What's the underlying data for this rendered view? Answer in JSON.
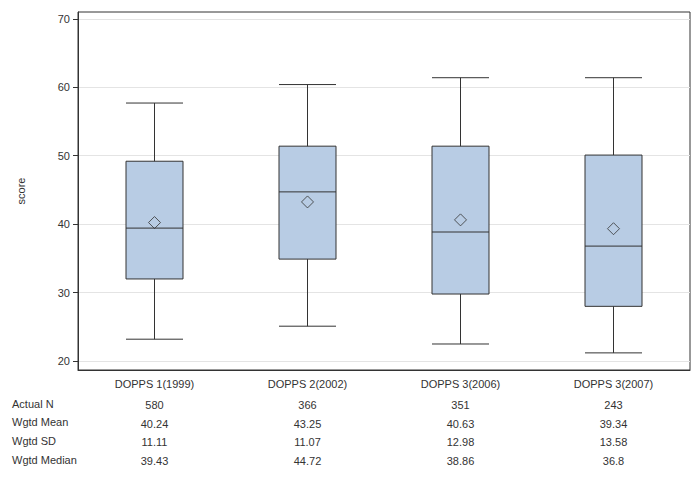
{
  "chart_data": {
    "type": "boxplot",
    "y_label": "score",
    "categories": [
      "DOPPS 1(1999)",
      "DOPPS 2(2002)",
      "DOPPS 3(2006)",
      "DOPPS 3(2007)"
    ],
    "boxes": [
      [
        23.2,
        32.0,
        39.43,
        49.2,
        57.7
      ],
      [
        25.1,
        34.9,
        44.72,
        51.4,
        60.4
      ],
      [
        22.5,
        29.8,
        38.86,
        51.4,
        61.4
      ],
      [
        21.2,
        28.0,
        36.8,
        50.1,
        61.4
      ]
    ],
    "means": [
      40.24,
      43.25,
      40.63,
      39.34
    ],
    "color": "#b8cce4",
    "marker": "diamond",
    "ylim": [
      18.7,
      71
    ],
    "yticks": [
      20,
      30,
      40,
      50,
      60,
      70
    ],
    "grid": true
  },
  "table": {
    "rows": [
      {
        "label": "Actual N",
        "values": [
          "580",
          "366",
          "351",
          "243"
        ]
      },
      {
        "label": "Wgtd Mean",
        "values": [
          "40.24",
          "43.25",
          "40.63",
          "39.34"
        ]
      },
      {
        "label": "Wgtd SD",
        "values": [
          "11.11",
          "11.07",
          "12.98",
          "13.58"
        ]
      },
      {
        "label": "Wgtd Median",
        "values": [
          "39.43",
          "44.72",
          "38.86",
          "36.8"
        ]
      }
    ]
  }
}
